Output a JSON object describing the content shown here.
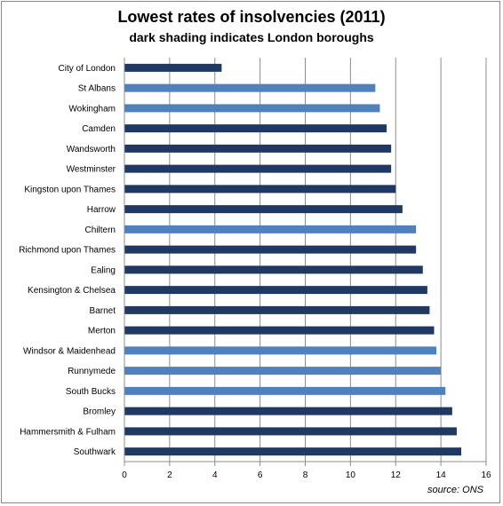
{
  "chart_data": {
    "type": "bar",
    "orientation": "horizontal",
    "title": "Lowest rates of insolvencies (2011)",
    "subtitle": "dark shading indicates London boroughs",
    "source": "source: ONS",
    "xlim": [
      0,
      16
    ],
    "xticks": [
      0,
      2,
      4,
      6,
      8,
      10,
      12,
      14,
      16
    ],
    "grid": "vertical",
    "colors": {
      "london": "#1f3864",
      "other": "#4f81bd"
    },
    "categories": [
      "City of London",
      "St Albans",
      "Wokingham",
      "Camden",
      "Wandsworth",
      "Westminster",
      "Kingston upon Thames",
      "Harrow",
      "Chiltern",
      "Richmond upon Thames",
      "Ealing",
      "Kensington & Chelsea",
      "Barnet",
      "Merton",
      "Windsor & Maidenhead",
      "Runnymede",
      "South Bucks",
      "Bromley",
      "Hammersmith  & Fulham",
      "Southwark"
    ],
    "values": [
      4.3,
      11.1,
      11.3,
      11.6,
      11.8,
      11.8,
      12.0,
      12.3,
      12.9,
      12.9,
      13.2,
      13.4,
      13.5,
      13.7,
      13.8,
      14.0,
      14.2,
      14.5,
      14.7,
      14.9
    ],
    "london": [
      true,
      false,
      false,
      true,
      true,
      true,
      true,
      true,
      false,
      true,
      true,
      true,
      true,
      true,
      false,
      false,
      false,
      true,
      true,
      true
    ]
  }
}
